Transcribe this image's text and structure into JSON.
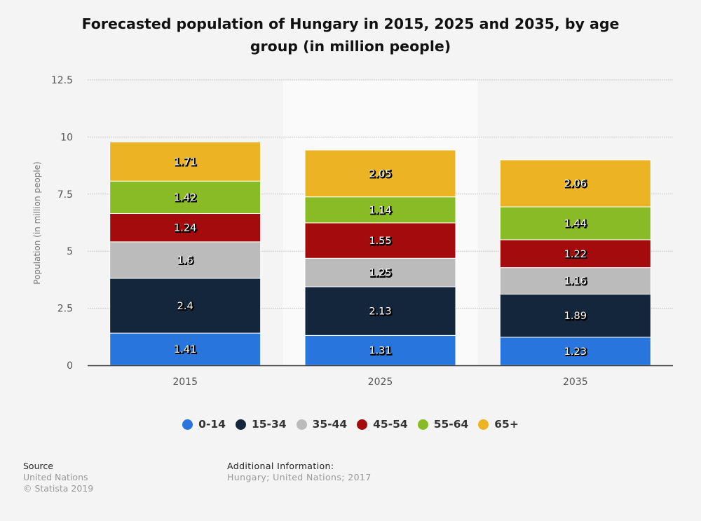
{
  "chart_data": {
    "type": "bar",
    "stacked": true,
    "title": "Forecasted population of Hungary in 2015, 2025 and 2035, by age group (in million people)",
    "xlabel": "",
    "ylabel": "Population (in million people)",
    "ylim": [
      0,
      12.5
    ],
    "yticks": [
      "0",
      "2.5",
      "5",
      "7.5",
      "10",
      "12.5"
    ],
    "ytick_values": [
      0,
      2.5,
      5,
      7.5,
      10,
      12.5
    ],
    "grid": true,
    "legend_position": "bottom",
    "highlighted_category": "2025",
    "categories": [
      "2015",
      "2025",
      "2035"
    ],
    "series": [
      {
        "name": "0-14",
        "color": "#2876dd",
        "values": [
          1.41,
          1.31,
          1.23
        ]
      },
      {
        "name": "15-34",
        "color": "#13263b",
        "values": [
          2.4,
          2.13,
          1.89
        ]
      },
      {
        "name": "35-44",
        "color": "#bbbbbb",
        "values": [
          1.6,
          1.25,
          1.16
        ]
      },
      {
        "name": "45-54",
        "color": "#a30b0c",
        "values": [
          1.24,
          1.55,
          1.22
        ]
      },
      {
        "name": "55-64",
        "color": "#89bb26",
        "values": [
          1.42,
          1.14,
          1.44
        ]
      },
      {
        "name": "65+",
        "color": "#ecb424",
        "values": [
          1.71,
          2.05,
          2.06
        ]
      }
    ],
    "data_labels": [
      [
        "1.41",
        "1.31",
        "1.23"
      ],
      [
        "2.4",
        "2.13",
        "1.89"
      ],
      [
        "1.6",
        "1.25",
        "1.16"
      ],
      [
        "1.24",
        "1.55",
        "1.22"
      ],
      [
        "1.42",
        "1.14",
        "1.44"
      ],
      [
        "1.71",
        "2.05",
        "2.06"
      ]
    ]
  },
  "footer": {
    "source_heading": "Source",
    "source_lines": [
      "United Nations",
      "© Statista 2019"
    ],
    "additional_heading": "Additional Information:",
    "additional_text": "Hungary; United Nations; 2017"
  }
}
